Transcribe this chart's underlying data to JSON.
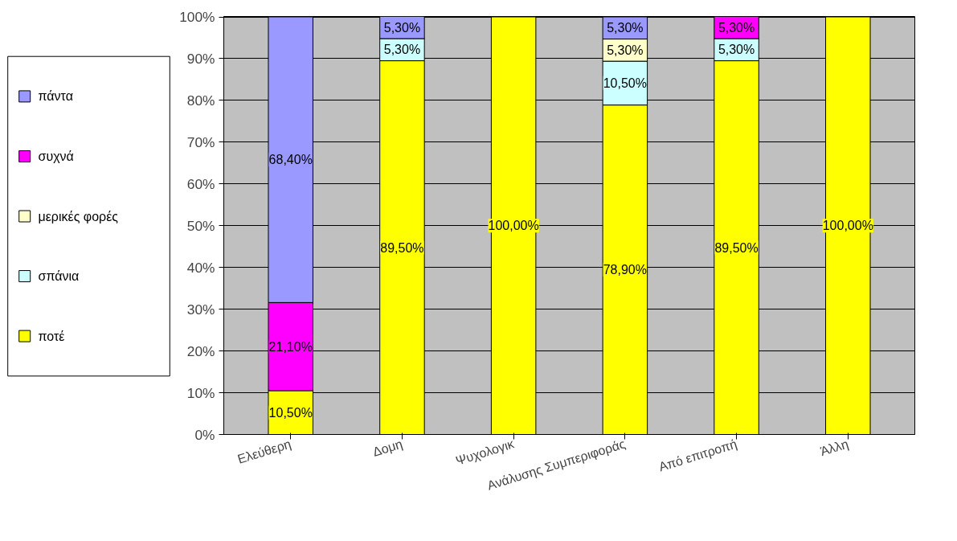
{
  "chart_data": {
    "type": "bar",
    "stacked": true,
    "categories": [
      "Ελεύθερη",
      "Δομη",
      "Ψυχολογικ",
      "Ανάλυσης Συμπεριφοράς",
      "Από επιτροπή",
      "Άλλη"
    ],
    "series": [
      {
        "name": "ποτέ",
        "color": "#ffff00",
        "values": [
          10.5,
          89.5,
          100,
          78.9,
          89.5,
          100
        ],
        "value_labels": [
          "10,50%",
          "89,50%",
          "100,00%",
          "78,90%",
          "89,50%",
          "100,00%"
        ]
      },
      {
        "name": "σπάνια",
        "color": "#ccffff",
        "values": [
          null,
          5.3,
          null,
          10.5,
          5.3,
          null
        ],
        "value_labels": [
          null,
          "5,30%",
          null,
          "10,50%",
          "5,30%",
          null
        ]
      },
      {
        "name": "μερικές φορές",
        "color": "#ffffcc",
        "values": [
          null,
          null,
          null,
          5.3,
          null,
          null
        ],
        "value_labels": [
          null,
          null,
          null,
          "5,30%",
          null,
          null
        ]
      },
      {
        "name": "συχνά",
        "color": "#ff00ff",
        "values": [
          21.1,
          null,
          null,
          null,
          5.3,
          null
        ],
        "value_labels": [
          "21,10%",
          null,
          null,
          null,
          "5,30%",
          null
        ]
      },
      {
        "name": "πάντα",
        "color": "#9999ff",
        "values": [
          68.4,
          5.3,
          null,
          5.3,
          null,
          null
        ],
        "value_labels": [
          "68,40%",
          "5,30%",
          null,
          "5,30%",
          null,
          null
        ]
      }
    ],
    "ylim": [
      0,
      100.1
    ],
    "yticks": [
      {
        "value": 0,
        "label": "0%"
      },
      {
        "value": 10,
        "label": "10%"
      },
      {
        "value": 20,
        "label": "20%"
      },
      {
        "value": 30,
        "label": "30%"
      },
      {
        "value": 40,
        "label": "40%"
      },
      {
        "value": 50,
        "label": "50%"
      },
      {
        "value": 60,
        "label": "60%"
      },
      {
        "value": 70,
        "label": "70%"
      },
      {
        "value": 80,
        "label": "80%"
      },
      {
        "value": 90,
        "label": "90%"
      },
      {
        "value": 100,
        "label": "100%"
      }
    ],
    "grid": "y",
    "legend": "left"
  }
}
